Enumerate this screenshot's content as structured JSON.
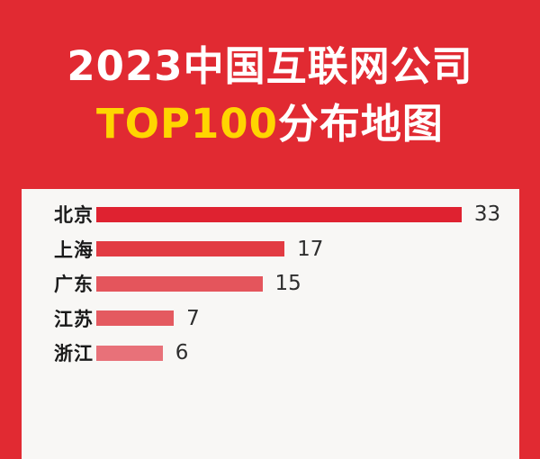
{
  "title": {
    "line1": "2023中国互联网公司",
    "line2_highlight": "TOP100",
    "line2_rest": "分布地图"
  },
  "colors": {
    "background": "#E12A32",
    "title_text": "#FFFFFF",
    "title_highlight": "#FFD500",
    "card_background": "#F8F7F5",
    "category_text": "#1A1A1A",
    "value_text": "#2E2E2E"
  },
  "chart_data": {
    "type": "bar",
    "orientation": "horizontal",
    "title": "2023中国互联网公司TOP100分布地图",
    "categories": [
      "北京",
      "上海",
      "广东",
      "江苏",
      "浙江"
    ],
    "values": [
      33,
      17,
      15,
      7,
      6
    ],
    "bar_colors": [
      "#DF2230",
      "#E23B43",
      "#E4555C",
      "#E45A60",
      "#E87179"
    ],
    "value_labels": [
      "33",
      "17",
      "15",
      "7",
      "6"
    ],
    "xlim": [
      0,
      36
    ],
    "grid": false,
    "legend": false,
    "note": "list truncated at bottom edge of image"
  }
}
